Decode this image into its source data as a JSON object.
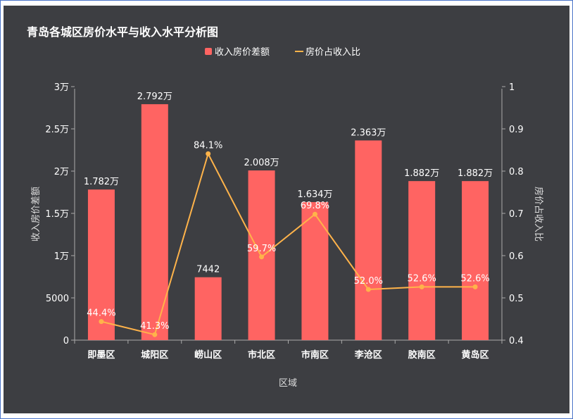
{
  "chart_data": {
    "type": "bar",
    "title": "青岛各城区房价水平与收入水平分析图",
    "xlabel": "区域",
    "ylabel_left": "收入房价差额",
    "ylabel_right": "房价占收入比",
    "categories": [
      "即墨区",
      "城阳区",
      "崂山区",
      "市北区",
      "市南区",
      "李沧区",
      "胶南区",
      "黄岛区"
    ],
    "ylim_left": [
      0,
      30000
    ],
    "yticks_left": [
      "0",
      "5000",
      "1万",
      "1.5万",
      "2万",
      "2.5万",
      "3万"
    ],
    "ylim_right": [
      0.4,
      1
    ],
    "yticks_right": [
      "0.4",
      "0.5",
      "0.6",
      "0.7",
      "0.8",
      "0.9",
      "1"
    ],
    "legend_position": "top-center",
    "grid": false,
    "series": [
      {
        "name": "收入房价差额",
        "type": "bar",
        "color": "#ff6462",
        "values": [
          17820,
          27920,
          7442,
          20080,
          16340,
          23630,
          18820,
          18820
        ],
        "labels": [
          "1.782万",
          "2.792万",
          "7442",
          "2.008万",
          "1.634万",
          "2.363万",
          "1.882万",
          "1.882万"
        ]
      },
      {
        "name": "房价占收入比",
        "type": "line",
        "axis": "right",
        "color": "#ffb34a",
        "values": [
          0.444,
          0.413,
          0.841,
          0.597,
          0.698,
          0.52,
          0.526,
          0.526
        ],
        "labels": [
          "44.4%",
          "41.3%",
          "84.1%",
          "59.7%",
          "69.8%",
          "52.0%",
          "52.6%",
          "52.6%"
        ]
      }
    ]
  }
}
